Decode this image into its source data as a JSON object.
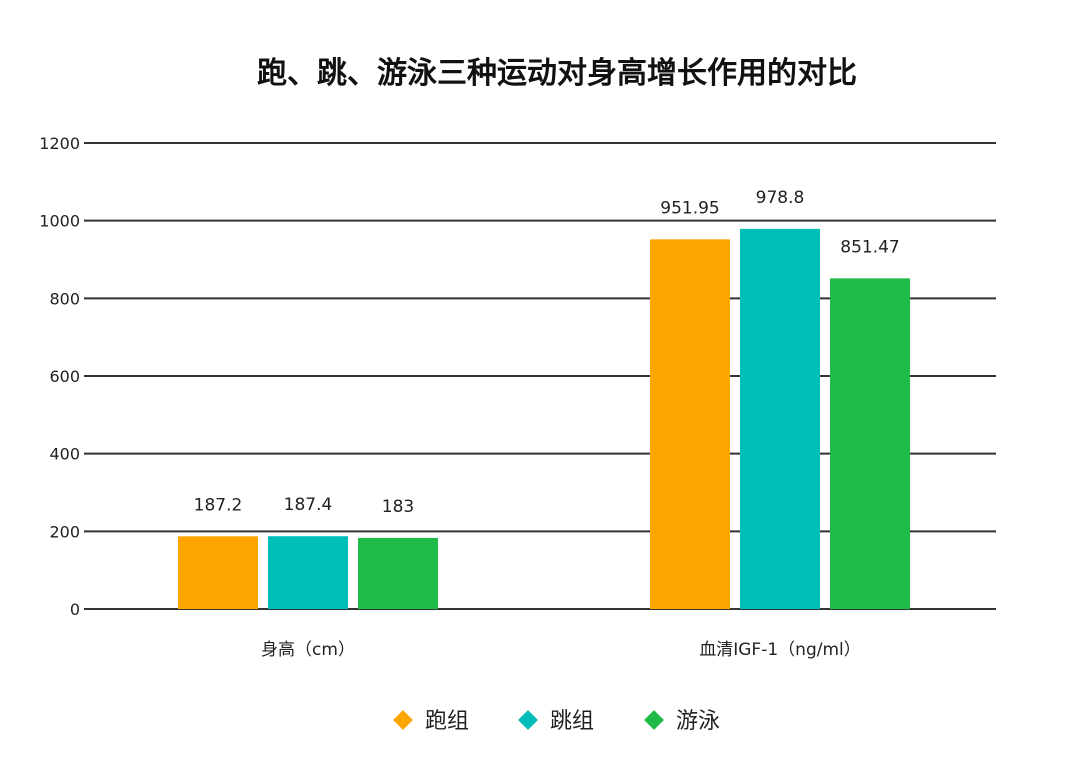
{
  "chart_data": {
    "type": "bar",
    "title": "跑、跳、游泳三种运动对身高增长作用的对比",
    "categories": [
      "身高（cm）",
      "血清IGF-1（ng/ml）"
    ],
    "series": [
      {
        "name": "跑组",
        "color": "#FFA500",
        "values": [
          187.2,
          951.95
        ],
        "labels": [
          "187.2",
          "951.95"
        ]
      },
      {
        "name": "跳组",
        "color": "#00BFB8",
        "values": [
          187.4,
          978.8
        ],
        "labels": [
          "187.4",
          "978.8"
        ]
      },
      {
        "name": "游泳",
        "color": "#1FBA47",
        "values": [
          183,
          851.47
        ],
        "labels": [
          "183",
          "851.47"
        ]
      }
    ],
    "ylim": [
      0,
      1200
    ],
    "yticks": [
      0,
      200,
      400,
      600,
      800,
      1000,
      1200
    ],
    "grid": true,
    "legend_position": "bottom",
    "xlabel": "",
    "ylabel": ""
  }
}
